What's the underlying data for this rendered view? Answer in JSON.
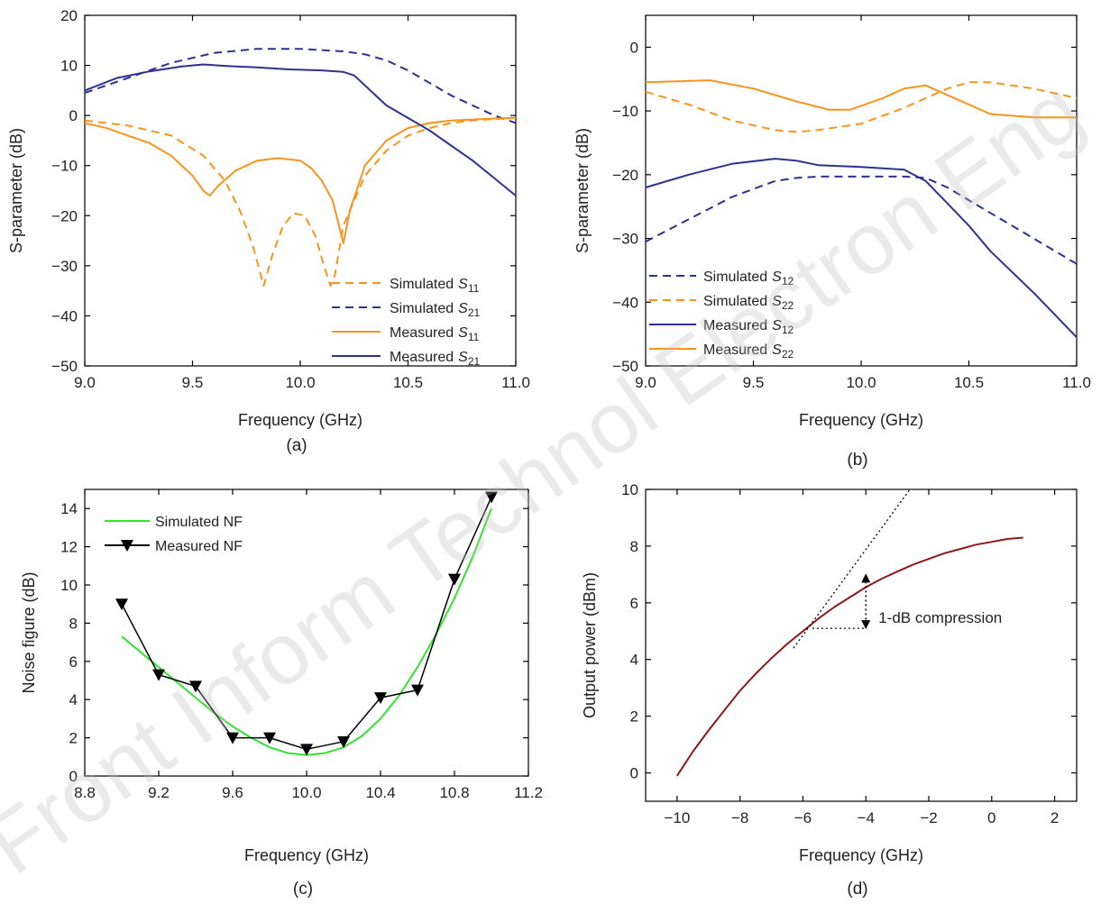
{
  "watermark": "Front Inform Technol Electron Eng",
  "colors": {
    "orange": "#f7941d",
    "blue": "#2e3192",
    "green": "#32e332",
    "black": "#000000",
    "red": "#8b1a1a",
    "magenta": "#e040e0"
  },
  "chart_data": [
    {
      "id": "a",
      "type": "line",
      "panel_label": "(a)",
      "xlabel": "Frequency (GHz)",
      "ylabel": "S-parameter (dB)",
      "xlim": [
        9.0,
        11.0
      ],
      "ylim": [
        -50,
        20
      ],
      "xticks": [
        9.0,
        9.5,
        10.0,
        10.5,
        11.0
      ],
      "xtick_labels": [
        "9.0",
        "9.5",
        "10.0",
        "10.5",
        "11.0"
      ],
      "yticks": [
        -50,
        -40,
        -30,
        -20,
        -10,
        0,
        10,
        20
      ],
      "ytick_labels": [
        "−50",
        "−40",
        "−30",
        "−20",
        "−10",
        "0",
        "10",
        "20"
      ],
      "legend_position": "bottom-right",
      "series": [
        {
          "legend": "Simulated",
          "sub": "11",
          "color": "orange",
          "dash": true,
          "x": [
            9.0,
            9.2,
            9.4,
            9.55,
            9.65,
            9.72,
            9.78,
            9.83,
            9.87,
            9.92,
            9.97,
            10.02,
            10.07,
            10.11,
            10.14,
            10.16,
            10.2,
            10.3,
            10.4,
            10.5,
            10.6,
            10.7,
            10.8,
            10.9,
            11.0
          ],
          "y": [
            -1,
            -2,
            -4,
            -8,
            -13,
            -19,
            -26,
            -34,
            -28,
            -22,
            -19.5,
            -20,
            -24,
            -30,
            -34,
            -32,
            -22,
            -12,
            -7,
            -4,
            -2.5,
            -1.5,
            -1,
            -0.7,
            -0.5
          ]
        },
        {
          "legend": "Simulated",
          "sub": "21",
          "color": "blue",
          "dash": true,
          "x": [
            9.0,
            9.2,
            9.4,
            9.6,
            9.8,
            10.0,
            10.2,
            10.3,
            10.4,
            10.5,
            10.6,
            10.7,
            10.8,
            10.9,
            11.0
          ],
          "y": [
            4.5,
            7.5,
            10.5,
            12.5,
            13.3,
            13.3,
            12.8,
            12.2,
            11,
            9,
            6.5,
            4,
            2,
            0,
            -1.5
          ]
        },
        {
          "legend": "Measured",
          "sub": "11",
          "color": "orange",
          "dash": false,
          "x": [
            9.0,
            9.1,
            9.2,
            9.3,
            9.4,
            9.5,
            9.55,
            9.58,
            9.62,
            9.7,
            9.8,
            9.9,
            10.0,
            10.05,
            10.1,
            10.15,
            10.18,
            10.2,
            10.23,
            10.3,
            10.4,
            10.5,
            10.6,
            10.7,
            10.8,
            10.9,
            11.0
          ],
          "y": [
            -1.5,
            -2.5,
            -4,
            -5.5,
            -8,
            -12,
            -15,
            -16,
            -14,
            -11,
            -9,
            -8.5,
            -9,
            -10.5,
            -13,
            -17,
            -22,
            -25.5,
            -19,
            -10,
            -5,
            -2.5,
            -1.5,
            -1,
            -0.8,
            -0.6,
            -0.5
          ]
        },
        {
          "legend": "Measured",
          "sub": "21",
          "color": "blue",
          "dash": false,
          "x": [
            9.0,
            9.15,
            9.3,
            9.45,
            9.55,
            9.65,
            9.8,
            9.95,
            10.1,
            10.2,
            10.25,
            10.3,
            10.35,
            10.4,
            10.5,
            10.6,
            10.7,
            10.8,
            10.9,
            11.0
          ],
          "y": [
            5,
            7.5,
            8.8,
            9.8,
            10.2,
            9.9,
            9.6,
            9.2,
            9,
            8.7,
            8,
            6,
            4,
            2,
            -0.5,
            -3,
            -6,
            -9,
            -12.5,
            -16
          ]
        }
      ]
    },
    {
      "id": "b",
      "type": "line",
      "panel_label": "(b)",
      "xlabel": "Frequency (GHz)",
      "ylabel": "S-parameter (dB)",
      "xlim": [
        9.0,
        11.0
      ],
      "ylim": [
        -50,
        5
      ],
      "xticks": [
        9.0,
        9.5,
        10.0,
        10.5,
        11.0
      ],
      "xtick_labels": [
        "9.0",
        "9.5",
        "10.0",
        "10.5",
        "11.0"
      ],
      "yticks": [
        -50,
        -40,
        -30,
        -20,
        -10,
        0
      ],
      "ytick_labels": [
        "−50",
        "−40",
        "−30",
        "−20",
        "−10",
        "0"
      ],
      "legend_position": "bottom-left",
      "series": [
        {
          "legend": "Simulated",
          "sub": "12",
          "color": "blue",
          "dash": true,
          "x": [
            9.0,
            9.2,
            9.4,
            9.6,
            9.7,
            9.8,
            10.0,
            10.2,
            10.3,
            10.4,
            10.6,
            10.8,
            11.0
          ],
          "y": [
            -30.5,
            -27,
            -23.5,
            -21,
            -20.5,
            -20.3,
            -20.3,
            -20.3,
            -20.5,
            -22,
            -26,
            -30,
            -34
          ]
        },
        {
          "legend": "Simulated",
          "sub": "22",
          "color": "orange",
          "dash": true,
          "x": [
            9.0,
            9.2,
            9.4,
            9.6,
            9.7,
            9.8,
            10.0,
            10.2,
            10.4,
            10.5,
            10.6,
            10.8,
            11.0
          ],
          "y": [
            -7,
            -9,
            -11.5,
            -13,
            -13.3,
            -13,
            -12,
            -9.5,
            -6.5,
            -5.5,
            -5.5,
            -6.5,
            -8
          ]
        },
        {
          "legend": "Measured",
          "sub": "12",
          "color": "blue",
          "dash": false,
          "x": [
            9.0,
            9.2,
            9.4,
            9.6,
            9.7,
            9.8,
            10.0,
            10.2,
            10.3,
            10.4,
            10.5,
            10.6,
            10.8,
            11.0
          ],
          "y": [
            -22,
            -20,
            -18.3,
            -17.5,
            -17.8,
            -18.5,
            -18.8,
            -19.2,
            -21,
            -24.5,
            -28,
            -32,
            -38.5,
            -45.5
          ]
        },
        {
          "legend": "Measured",
          "sub": "22",
          "color": "orange",
          "dash": false,
          "x": [
            9.0,
            9.2,
            9.3,
            9.5,
            9.7,
            9.85,
            9.95,
            10.1,
            10.2,
            10.3,
            10.4,
            10.5,
            10.6,
            10.8,
            11.0
          ],
          "y": [
            -5.5,
            -5.3,
            -5.2,
            -6.5,
            -8.5,
            -9.8,
            -9.8,
            -8,
            -6.5,
            -6,
            -7.5,
            -9,
            -10.5,
            -11,
            -11
          ]
        }
      ]
    },
    {
      "id": "c",
      "type": "line",
      "panel_label": "(c)",
      "xlabel": "Frequency (GHz)",
      "ylabel": "Noise figure (dB)",
      "xlim": [
        8.8,
        11.2
      ],
      "ylim": [
        0,
        15
      ],
      "xticks": [
        8.8,
        9.2,
        9.6,
        10.0,
        10.4,
        10.8,
        11.2
      ],
      "xtick_labels": [
        "8.8",
        "9.2",
        "9.6",
        "10.0",
        "10.4",
        "10.8",
        "11.2"
      ],
      "yticks": [
        0,
        2,
        4,
        6,
        8,
        10,
        12,
        14
      ],
      "ytick_labels": [
        "0",
        "2",
        "4",
        "6",
        "8",
        "10",
        "12",
        "14"
      ],
      "legend_position": "top-left",
      "series": [
        {
          "legend": "Simulated NF",
          "color": "green",
          "marker": "none",
          "x": [
            9.0,
            9.1,
            9.2,
            9.3,
            9.4,
            9.5,
            9.6,
            9.7,
            9.8,
            9.9,
            10.0,
            10.1,
            10.2,
            10.3,
            10.4,
            10.5,
            10.6,
            10.7,
            10.8,
            10.9,
            11.0
          ],
          "y": [
            7.3,
            6.5,
            5.7,
            4.9,
            4.1,
            3.3,
            2.6,
            2.0,
            1.5,
            1.2,
            1.1,
            1.2,
            1.5,
            2.1,
            3.0,
            4.2,
            5.7,
            7.4,
            9.3,
            11.5,
            14.0
          ]
        },
        {
          "legend": "Measured NF",
          "color": "black",
          "marker": "triangle-down",
          "x": [
            9.0,
            9.2,
            9.4,
            9.6,
            9.8,
            10.0,
            10.2,
            10.4,
            10.6,
            10.8,
            11.0
          ],
          "y": [
            9.0,
            5.3,
            4.7,
            2.0,
            2.0,
            1.4,
            1.8,
            4.1,
            4.5,
            10.3,
            14.6
          ]
        }
      ]
    },
    {
      "id": "d",
      "type": "line",
      "panel_label": "(d)",
      "xlabel": "Frequency (GHz)",
      "ylabel": "Output power (dBm)",
      "xlim": [
        -11,
        2.7
      ],
      "ylim": [
        -1,
        10
      ],
      "xticks": [
        -10,
        -8,
        -6,
        -4,
        -2,
        0,
        2
      ],
      "xtick_labels": [
        "−10",
        "−8",
        "−6",
        "−4",
        "−2",
        "0",
        "2"
      ],
      "yticks": [
        0,
        2,
        4,
        6,
        8,
        10
      ],
      "ytick_labels": [
        "0",
        "2",
        "4",
        "6",
        "8",
        "10"
      ],
      "annotation": {
        "text": "1-dB compression",
        "x": -4,
        "y_top": 7.0,
        "y_bottom": 5.1
      },
      "series": [
        {
          "name": "",
          "color": "red",
          "dash": false,
          "x": [
            -10,
            -9.5,
            -9,
            -8.5,
            -8,
            -7.5,
            -7,
            -6.5,
            -6,
            -5.5,
            -5,
            -4.5,
            -4,
            -3.5,
            -3,
            -2.5,
            -2,
            -1.5,
            -1,
            -0.5,
            0,
            0.5,
            1
          ],
          "y": [
            -0.1,
            0.75,
            1.5,
            2.2,
            2.9,
            3.5,
            4.05,
            4.55,
            5.0,
            5.45,
            5.85,
            6.2,
            6.55,
            6.85,
            7.1,
            7.35,
            7.55,
            7.75,
            7.9,
            8.05,
            8.15,
            8.25,
            8.3
          ]
        },
        {
          "name": "",
          "color": "black",
          "dotted": true,
          "x": [
            -6.3,
            -2.6
          ],
          "y": [
            4.4,
            10.0
          ]
        }
      ]
    }
  ]
}
